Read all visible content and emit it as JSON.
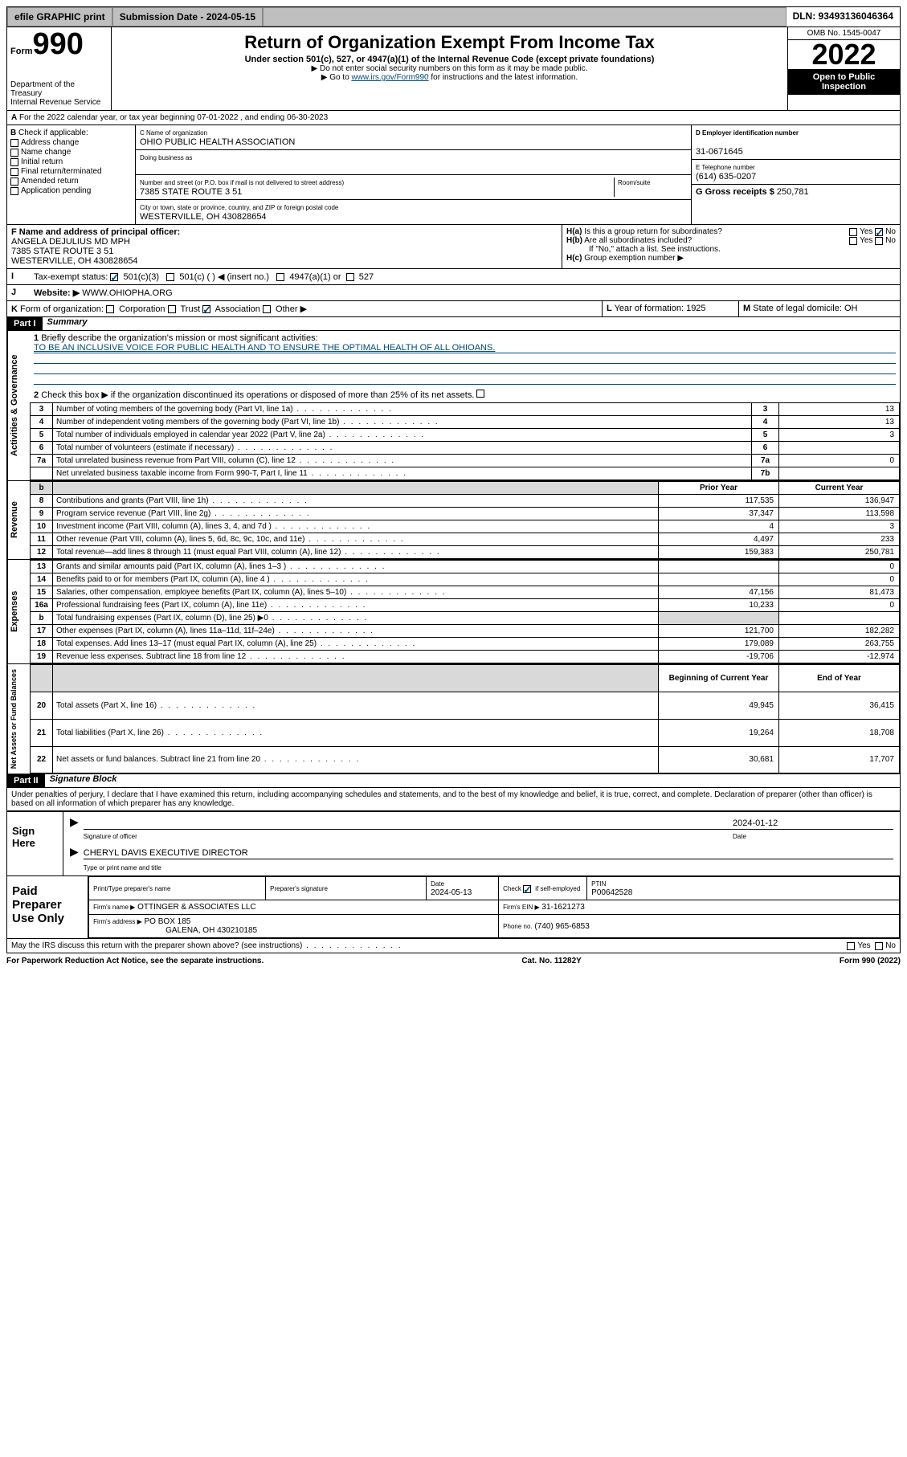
{
  "topbar": {
    "efile": "efile GRAPHIC print",
    "subdate_lbl": "Submission Date - 2024-05-15",
    "dln": "DLN: 93493136046364"
  },
  "hdr": {
    "form_lbl": "Form",
    "f990": "990",
    "dept": "Department of the Treasury\nInternal Revenue Service",
    "title": "Return of Organization Exempt From Income Tax",
    "sub": "Under section 501(c), 527, or 4947(a)(1) of the Internal Revenue Code (except private foundations)",
    "note1": "▶ Do not enter social security numbers on this form as it may be made public.",
    "note2_pre": "▶ Go to ",
    "note2_link": "www.irs.gov/Form990",
    "note2_post": " for instructions and the latest information.",
    "omb": "OMB No. 1545-0047",
    "year": "2022",
    "open": "Open to Public Inspection"
  },
  "A": {
    "line": "For the 2022 calendar year, or tax year beginning 07-01-2022    , and ending 06-30-2023",
    "prefix": "A"
  },
  "B": {
    "hdr": "Check if applicable:",
    "opts": [
      "Address change",
      "Name change",
      "Initial return",
      "Final return/terminated",
      "Amended return",
      "Application pending"
    ]
  },
  "C": {
    "name_lbl": "C Name of organization",
    "name": "OHIO PUBLIC HEALTH ASSOCIATION",
    "dba_lbl": "Doing business as",
    "addr_lbl": "Number and street (or P.O. box if mail is not delivered to street address)",
    "room_lbl": "Room/suite",
    "addr": "7385 STATE ROUTE 3 51",
    "city_lbl": "City or town, state or province, country, and ZIP or foreign postal code",
    "city": "WESTERVILLE, OH  430828654"
  },
  "D": {
    "lbl": "D Employer identification number",
    "val": "31-0671645"
  },
  "E": {
    "lbl": "E Telephone number",
    "val": "(614) 635-0207"
  },
  "G": {
    "lbl": "G Gross receipts $",
    "val": "250,781"
  },
  "F": {
    "lbl": "F  Name and address of principal officer:",
    "name": "ANGELA DEJULIUS MD MPH",
    "addr": "7385 STATE ROUTE 3 51",
    "city": "WESTERVILLE, OH  430828654"
  },
  "H": {
    "a": "Is this a group return for subordinates?",
    "a_yes": "Yes",
    "a_no": "No",
    "b": "Are all subordinates included?",
    "b_yes": "Yes",
    "b_no": "No",
    "b_note": "If \"No,\" attach a list. See instructions.",
    "c": "Group exemption number ▶"
  },
  "I": {
    "lbl": "Tax-exempt status:",
    "o1": "501(c)(3)",
    "o2": "501(c) (  ) ◀ (insert no.)",
    "o3": "4947(a)(1) or",
    "o4": "527"
  },
  "J": {
    "lbl": "Website: ▶",
    "val": "WWW.OHIOPHA.ORG"
  },
  "K": {
    "lbl": "Form of organization:",
    "o1": "Corporation",
    "o2": "Trust",
    "o3": "Association",
    "o4": "Other ▶"
  },
  "L": {
    "lbl": "Year of formation: 1925"
  },
  "M": {
    "lbl": "State of legal domicile: OH"
  },
  "partI": {
    "bar": "Part I",
    "title": "Summary",
    "side1": "Activities & Governance",
    "side2": "Revenue",
    "side3": "Expenses",
    "side4": "Net Assets or Fund Balances"
  },
  "q1": {
    "lbl": "Briefly describe the organization's mission or most significant activities:",
    "val": "TO BE AN INCLUSIVE VOICE FOR PUBLIC HEALTH AND TO ENSURE THE OPTIMAL HEALTH OF ALL OHIOANS."
  },
  "q2": "Check this box ▶       if the organization discontinued its operations or disposed of more than 25% of its net assets.",
  "gov": [
    {
      "n": "3",
      "d": "Number of voting members of the governing body (Part VI, line 1a)",
      "k": "3",
      "v": "13"
    },
    {
      "n": "4",
      "d": "Number of independent voting members of the governing body (Part VI, line 1b)",
      "k": "4",
      "v": "13"
    },
    {
      "n": "5",
      "d": "Total number of individuals employed in calendar year 2022 (Part V, line 2a)",
      "k": "5",
      "v": "3"
    },
    {
      "n": "6",
      "d": "Total number of volunteers (estimate if necessary)",
      "k": "6",
      "v": ""
    },
    {
      "n": "7a",
      "d": "Total unrelated business revenue from Part VIII, column (C), line 12",
      "k": "7a",
      "v": "0"
    },
    {
      "n": "",
      "d": "Net unrelated business taxable income from Form 990-T, Part I, line 11",
      "k": "7b",
      "v": ""
    }
  ],
  "yrhdr": {
    "b": "b",
    "prior": "Prior Year",
    "curr": "Current Year"
  },
  "rev": [
    {
      "n": "8",
      "d": "Contributions and grants (Part VIII, line 1h)",
      "p": "117,535",
      "c": "136,947"
    },
    {
      "n": "9",
      "d": "Program service revenue (Part VIII, line 2g)",
      "p": "37,347",
      "c": "113,598"
    },
    {
      "n": "10",
      "d": "Investment income (Part VIII, column (A), lines 3, 4, and 7d )",
      "p": "4",
      "c": "3"
    },
    {
      "n": "11",
      "d": "Other revenue (Part VIII, column (A), lines 5, 6d, 8c, 9c, 10c, and 11e)",
      "p": "4,497",
      "c": "233"
    },
    {
      "n": "12",
      "d": "Total revenue—add lines 8 through 11 (must equal Part VIII, column (A), line 12)",
      "p": "159,383",
      "c": "250,781"
    }
  ],
  "exp": [
    {
      "n": "13",
      "d": "Grants and similar amounts paid (Part IX, column (A), lines 1–3 )",
      "p": "",
      "c": "0"
    },
    {
      "n": "14",
      "d": "Benefits paid to or for members (Part IX, column (A), line 4 )",
      "p": "",
      "c": "0"
    },
    {
      "n": "15",
      "d": "Salaries, other compensation, employee benefits (Part IX, column (A), lines 5–10)",
      "p": "47,156",
      "c": "81,473"
    },
    {
      "n": "16a",
      "d": "Professional fundraising fees (Part IX, column (A), line 11e)",
      "p": "10,233",
      "c": "0"
    },
    {
      "n": "b",
      "d": "Total fundraising expenses (Part IX, column (D), line 25) ▶0",
      "p": "—",
      "c": "—"
    },
    {
      "n": "17",
      "d": "Other expenses (Part IX, column (A), lines 11a–11d, 11f–24e)",
      "p": "121,700",
      "c": "182,282"
    },
    {
      "n": "18",
      "d": "Total expenses. Add lines 13–17 (must equal Part IX, column (A), line 25)",
      "p": "179,089",
      "c": "263,755"
    },
    {
      "n": "19",
      "d": "Revenue less expenses. Subtract line 18 from line 12",
      "p": "-19,706",
      "c": "-12,974"
    }
  ],
  "nethdr": {
    "b": "Beginning of Current Year",
    "e": "End of Year"
  },
  "net": [
    {
      "n": "20",
      "d": "Total assets (Part X, line 16)",
      "p": "49,945",
      "c": "36,415"
    },
    {
      "n": "21",
      "d": "Total liabilities (Part X, line 26)",
      "p": "19,264",
      "c": "18,708"
    },
    {
      "n": "22",
      "d": "Net assets or fund balances. Subtract line 21 from line 20",
      "p": "30,681",
      "c": "17,707"
    }
  ],
  "partII": {
    "bar": "Part II",
    "title": "Signature Block",
    "decl": "Under penalties of perjury, I declare that I have examined this return, including accompanying schedules and statements, and to the best of my knowledge and belief, it is true, correct, and complete. Declaration of preparer (other than officer) is based on all information of which preparer has any knowledge."
  },
  "sign": {
    "here": "Sign Here",
    "sigoff": "Signature of officer",
    "date": "Date",
    "datev": "2024-01-12",
    "name": "CHERYL DAVIS  EXECUTIVE DIRECTOR",
    "type": "Type or print name and title"
  },
  "prep": {
    "hdr": "Paid Preparer Use Only",
    "pt": "Print/Type preparer's name",
    "ps": "Preparer's signature",
    "dt": "Date",
    "dtv": "2024-05-13",
    "chk": "Check        if self-employed",
    "ptin_lbl": "PTIN",
    "ptin": "P00642528",
    "firm_lbl": "Firm's name   ▶",
    "firm": "OTTINGER & ASSOCIATES LLC",
    "ein_lbl": "Firm's EIN ▶",
    "ein": "31-1621273",
    "addr_lbl": "Firm's address ▶",
    "addr": "PO BOX 185",
    "addr2": "GALENA, OH  430210185",
    "ph_lbl": "Phone no.",
    "ph": "(740) 965-6853"
  },
  "bottom": {
    "q": "May the IRS discuss this return with the preparer shown above? (see instructions)",
    "yes": "Yes",
    "no": "No",
    "pra": "For Paperwork Reduction Act Notice, see the separate instructions.",
    "cat": "Cat. No. 11282Y",
    "form": "Form 990 (2022)"
  }
}
